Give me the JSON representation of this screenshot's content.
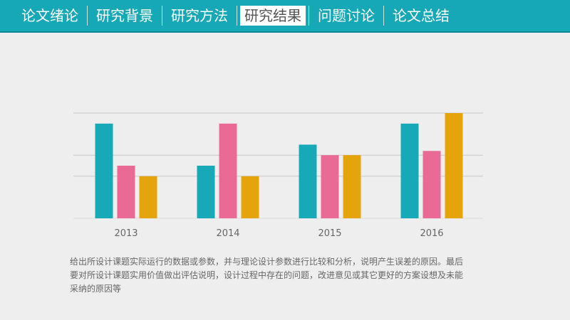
{
  "nav": {
    "items": [
      "论文绪论",
      "研究背景",
      "研究方法",
      "研究结果",
      "问题讨论",
      "论文总结"
    ],
    "active_index": 3
  },
  "colors": {
    "header_bg": "#16a8b6",
    "series_1": "#17a9b8",
    "series_2": "#ea6a96",
    "series_3": "#e5a40b"
  },
  "chart_data": {
    "type": "bar",
    "categories": [
      "2013",
      "2014",
      "2015",
      "2016"
    ],
    "series": [
      {
        "values": [
          4.5,
          2.5,
          3.5,
          4.5
        ]
      },
      {
        "values": [
          2.5,
          4.5,
          3.0,
          3.2
        ]
      },
      {
        "values": [
          2.0,
          2.0,
          3.0,
          5.0
        ]
      }
    ],
    "ylim": [
      0,
      5
    ],
    "grid": true,
    "legend": false,
    "title": "",
    "xlabel": "",
    "ylabel": ""
  },
  "description": "给出所设计课题实际运行的数据或参数，并与理论设计参数进行比较和分析，说明产生误差的原因。最后要对所设计课题实用价值做出评估说明，设计过程中存在的问题，改进意见或其它更好的方案设想及未能采纳的原因等"
}
